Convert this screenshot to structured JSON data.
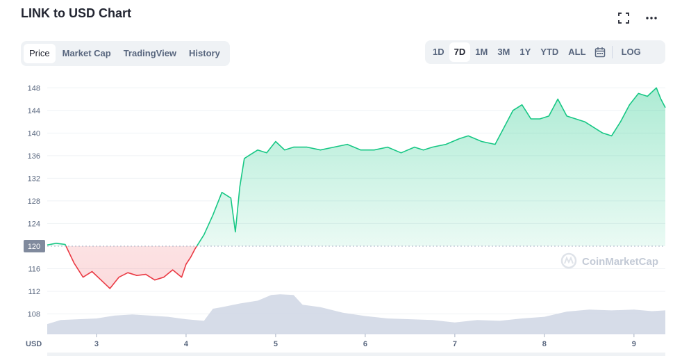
{
  "page": {
    "title": "LINK to USD Chart"
  },
  "tabs": [
    "Price",
    "Market Cap",
    "TradingView",
    "History"
  ],
  "active_tab": "Price",
  "ranges": [
    "1D",
    "7D",
    "1M",
    "3M",
    "1Y",
    "YTD",
    "ALL"
  ],
  "active_range": "7D",
  "log_label": "LOG",
  "icons": {
    "fullscreen": "fullscreen-icon",
    "more": "more-icon",
    "calendar": "calendar-icon"
  },
  "colors": {
    "up": "#16c784",
    "down": "#ea3943",
    "volume": "#cfd6e4",
    "reference_label_bg": "#808a9d"
  },
  "watermark": "CoinMarketCap",
  "chart_data": {
    "type": "line",
    "currency_label": "USD",
    "x_ticks": [
      "3",
      "4",
      "5",
      "6",
      "7",
      "8",
      "9"
    ],
    "x_range": [
      2.45,
      9.35
    ],
    "y_ticks": [
      108,
      112,
      116,
      120,
      124,
      128,
      132,
      136,
      140,
      144,
      148
    ],
    "y_range": [
      104.5,
      150
    ],
    "reference_price": 120,
    "grid": true,
    "price_series": {
      "x": [
        2.45,
        2.55,
        2.65,
        2.75,
        2.85,
        2.95,
        3.05,
        3.15,
        3.25,
        3.35,
        3.45,
        3.55,
        3.65,
        3.75,
        3.85,
        3.95,
        4.0,
        4.05,
        4.1,
        4.2,
        4.3,
        4.4,
        4.5,
        4.55,
        4.6,
        4.65,
        4.7,
        4.8,
        4.9,
        5.0,
        5.1,
        5.2,
        5.35,
        5.5,
        5.65,
        5.8,
        5.95,
        6.1,
        6.25,
        6.4,
        6.55,
        6.65,
        6.75,
        6.9,
        7.05,
        7.15,
        7.3,
        7.45,
        7.55,
        7.65,
        7.75,
        7.85,
        7.95,
        8.05,
        8.15,
        8.25,
        8.35,
        8.45,
        8.55,
        8.65,
        8.75,
        8.85,
        8.95,
        9.05,
        9.15,
        9.25,
        9.3,
        9.35
      ],
      "y": [
        120.2,
        120.5,
        120.3,
        117.0,
        114.5,
        115.5,
        114.0,
        112.5,
        114.5,
        115.3,
        114.8,
        115.0,
        114.0,
        114.5,
        115.8,
        114.5,
        116.8,
        118.0,
        119.5,
        122.0,
        125.5,
        129.5,
        128.5,
        122.5,
        130.5,
        135.5,
        136.0,
        137.0,
        136.5,
        138.5,
        137.0,
        137.5,
        137.5,
        137.0,
        137.5,
        138.0,
        137.0,
        137.0,
        137.5,
        136.5,
        137.5,
        137.0,
        137.5,
        138.0,
        139.0,
        139.5,
        138.5,
        138.0,
        141.0,
        144.0,
        145.0,
        142.5,
        142.5,
        143.0,
        146.0,
        143.0,
        142.5,
        142.0,
        141.0,
        140.0,
        139.5,
        142.0,
        145.0,
        147.0,
        146.5,
        148.0,
        146.0,
        144.5
      ]
    },
    "volume_series": {
      "x": [
        2.45,
        2.6,
        2.8,
        3.0,
        3.2,
        3.4,
        3.6,
        3.8,
        4.0,
        4.2,
        4.3,
        4.4,
        4.6,
        4.8,
        4.95,
        5.05,
        5.2,
        5.3,
        5.5,
        5.75,
        6.0,
        6.25,
        6.5,
        6.75,
        7.0,
        7.25,
        7.5,
        7.75,
        8.0,
        8.25,
        8.5,
        8.75,
        9.0,
        9.2,
        9.35
      ],
      "v": [
        0.24,
        0.34,
        0.36,
        0.38,
        0.45,
        0.48,
        0.45,
        0.42,
        0.36,
        0.32,
        0.62,
        0.66,
        0.75,
        0.82,
        0.96,
        0.98,
        0.96,
        0.72,
        0.66,
        0.52,
        0.44,
        0.38,
        0.36,
        0.34,
        0.28,
        0.34,
        0.32,
        0.38,
        0.42,
        0.55,
        0.6,
        0.58,
        0.6,
        0.56,
        0.58
      ]
    }
  }
}
